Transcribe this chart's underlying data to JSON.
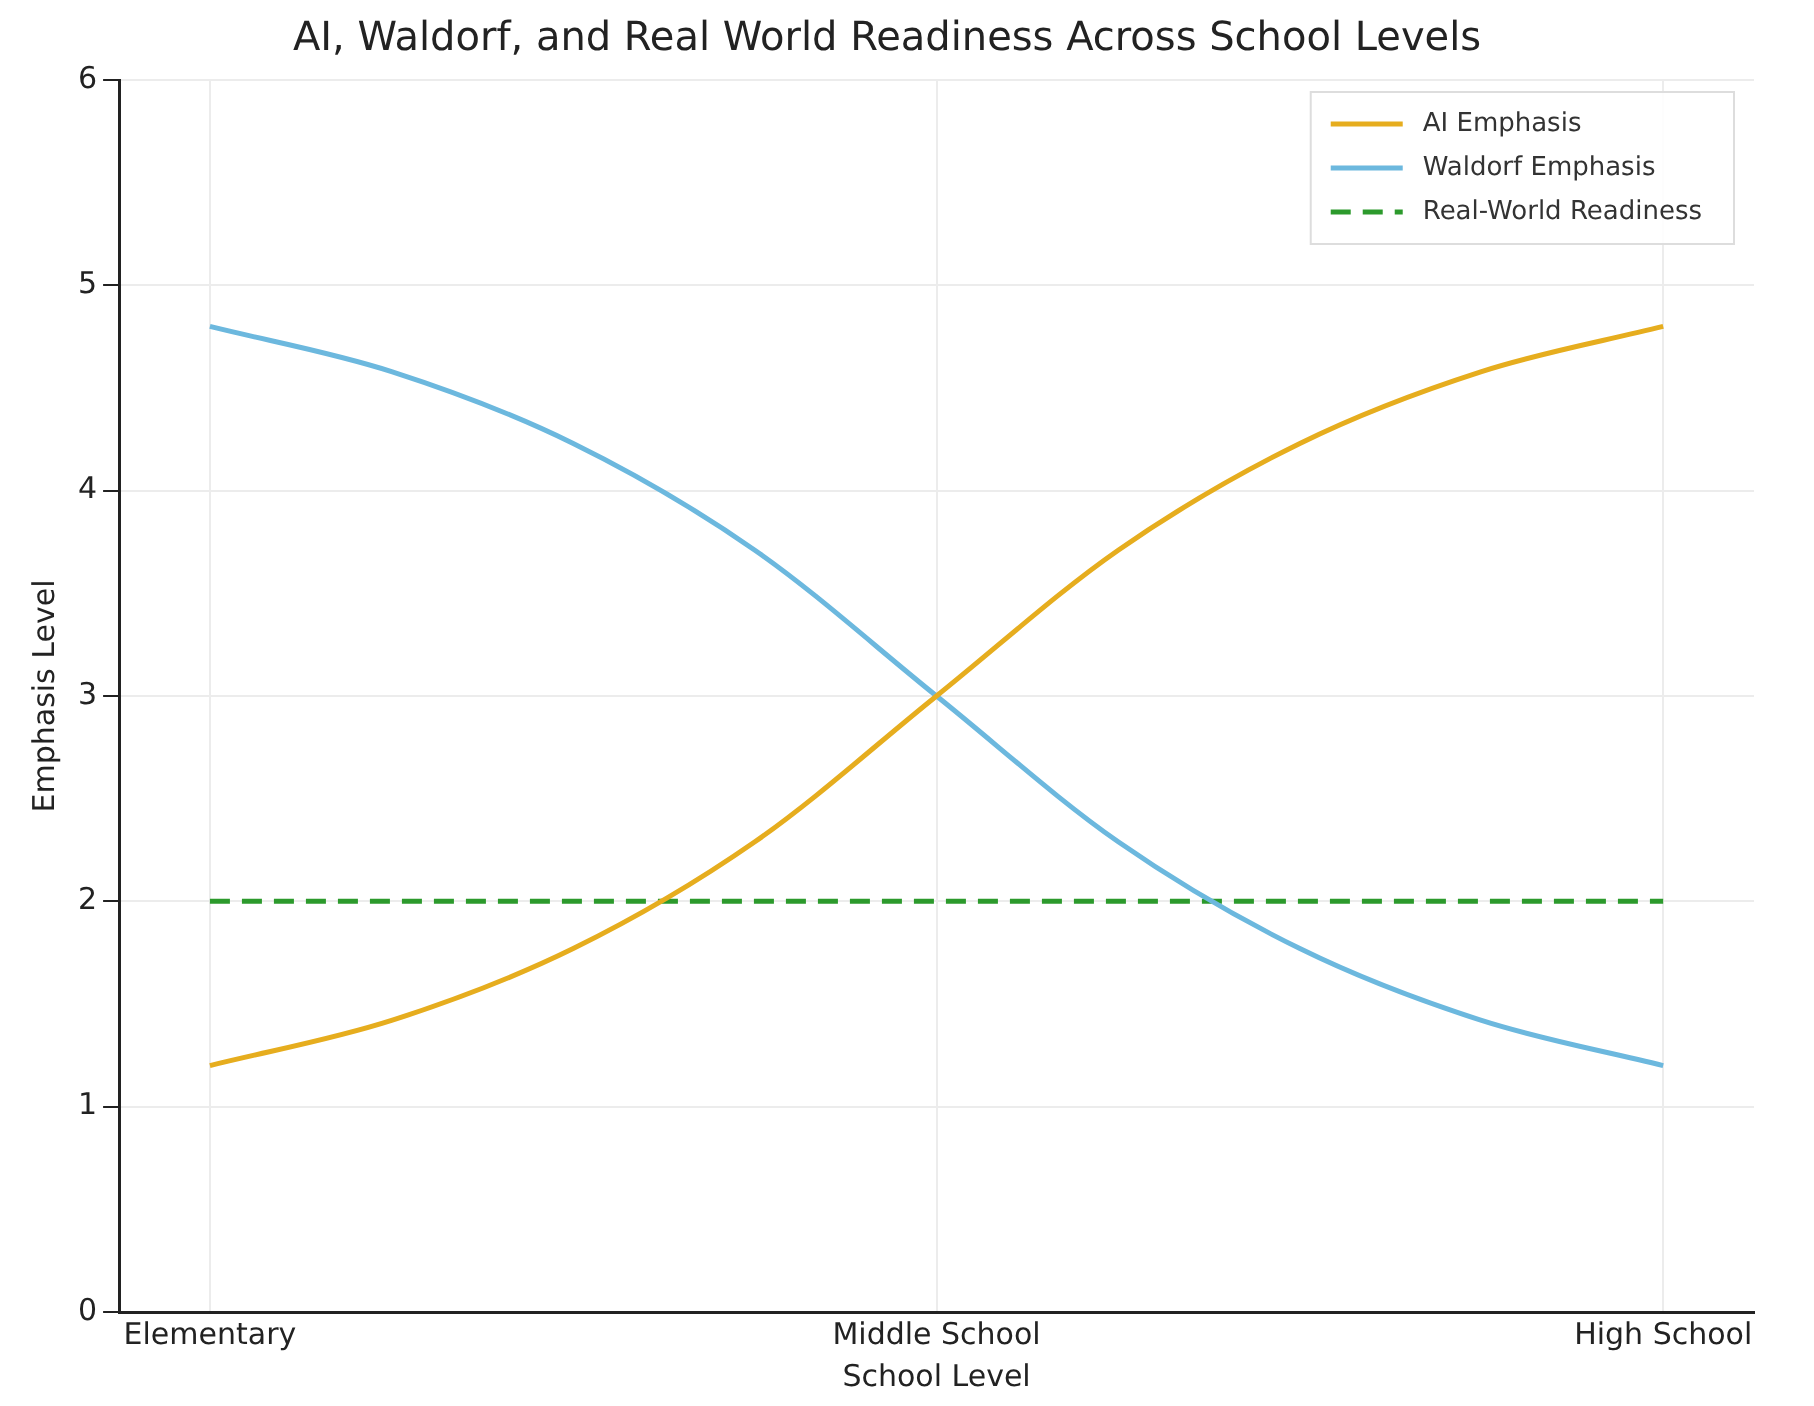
{
  "chart_data": {
    "type": "line",
    "title": "AI, Waldorf, and Real World Readiness Across School Levels",
    "xlabel": "School Level",
    "ylabel": "Emphasis Level",
    "categories": [
      "Elementary",
      null,
      null,
      null,
      "Middle School",
      null,
      null,
      null,
      "High School"
    ],
    "ylim": [
      0,
      6
    ],
    "yticks": [
      0,
      1,
      2,
      3,
      4,
      5,
      6
    ],
    "series": [
      {
        "name": "AI Emphasis",
        "color": "#e6ad1e",
        "values": [
          1.2,
          1.42,
          1.77,
          2.29,
          3,
          3.71,
          4.23,
          4.58,
          4.8
        ]
      },
      {
        "name": "Waldorf Emphasis",
        "color": "#6cb8de",
        "values": [
          4.8,
          4.58,
          4.23,
          3.71,
          3,
          2.29,
          1.77,
          1.42,
          1.2
        ]
      },
      {
        "name": "Real-World Readiness",
        "color": "#2c9a2c",
        "line_style": "dashed",
        "values": [
          2,
          2,
          2,
          2,
          2,
          2,
          2,
          2,
          2
        ]
      }
    ],
    "grid": true,
    "legend": "top right",
    "marker": "none"
  }
}
